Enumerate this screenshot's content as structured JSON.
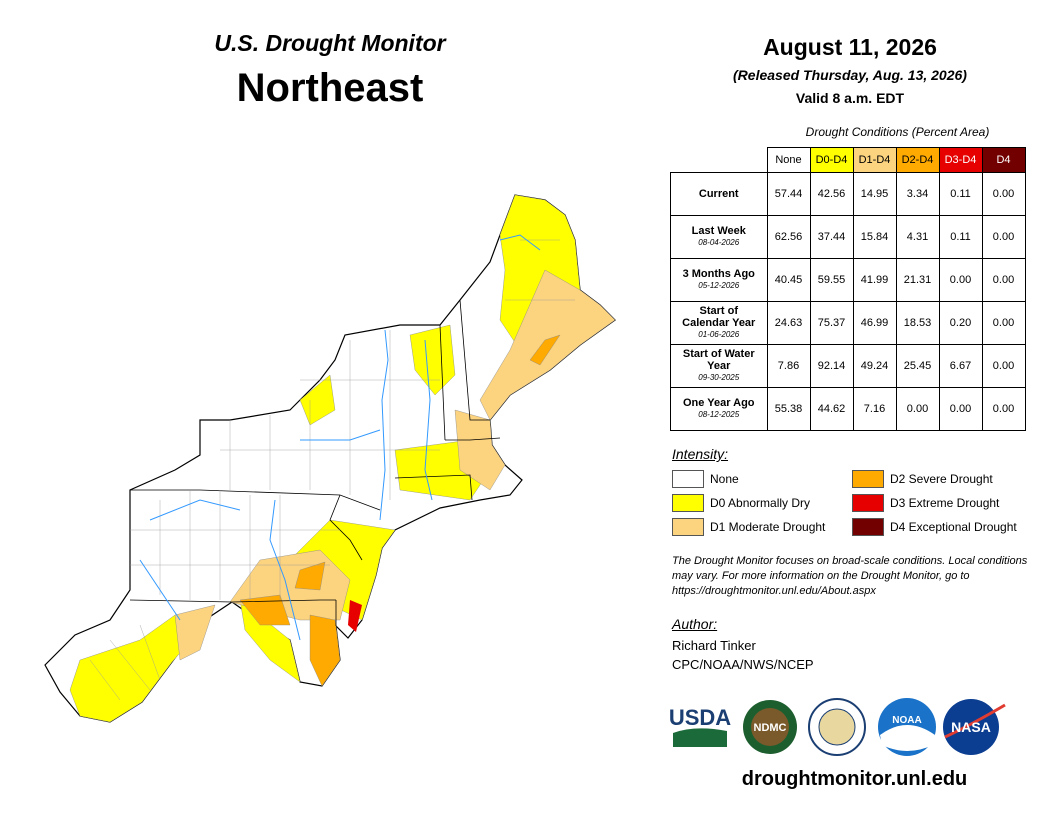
{
  "header": {
    "series": "U.S. Drought Monitor",
    "region": "Northeast"
  },
  "date": {
    "title": "August 11, 2026",
    "released": "(Released Thursday, Aug. 13, 2026)",
    "valid": "Valid 8 a.m. EDT"
  },
  "table": {
    "caption": "Drought Conditions (Percent Area)",
    "columns": [
      {
        "label": "None",
        "color": "#ffffff",
        "text": "#000000"
      },
      {
        "label": "D0-D4",
        "color": "#ffff00",
        "text": "#000000"
      },
      {
        "label": "D1-D4",
        "color": "#fcd37f",
        "text": "#000000"
      },
      {
        "label": "D2-D4",
        "color": "#ffaa00",
        "text": "#000000"
      },
      {
        "label": "D3-D4",
        "color": "#e60000",
        "text": "#ffffff"
      },
      {
        "label": "D4",
        "color": "#730000",
        "text": "#ffffff"
      }
    ],
    "rows": [
      {
        "label": "Current",
        "values": [
          "57.44",
          "42.56",
          "14.95",
          "3.34",
          "0.11",
          "0.00"
        ]
      },
      {
        "label": "Last Week",
        "date": "08-04-2026",
        "values": [
          "62.56",
          "37.44",
          "15.84",
          "4.31",
          "0.11",
          "0.00"
        ]
      },
      {
        "label": "3 Months Ago",
        "date": "05-12-2026",
        "values": [
          "40.45",
          "59.55",
          "41.99",
          "21.31",
          "0.00",
          "0.00"
        ]
      },
      {
        "label": "Start of Calendar Year",
        "date": "01-06-2026",
        "values": [
          "24.63",
          "75.37",
          "46.99",
          "18.53",
          "0.20",
          "0.00"
        ]
      },
      {
        "label": "Start of Water Year",
        "date": "09-30-2025",
        "values": [
          "7.86",
          "92.14",
          "49.24",
          "25.45",
          "6.67",
          "0.00"
        ]
      },
      {
        "label": "One Year Ago",
        "date": "08-12-2025",
        "values": [
          "55.38",
          "44.62",
          "7.16",
          "0.00",
          "0.00",
          "0.00"
        ]
      }
    ]
  },
  "legend": {
    "title": "Intensity:",
    "items": [
      {
        "label": "None",
        "color": "#ffffff"
      },
      {
        "label": "D0 Abnormally Dry",
        "color": "#ffff00"
      },
      {
        "label": "D1 Moderate Drought",
        "color": "#fcd37f"
      },
      {
        "label": "D2 Severe Drought",
        "color": "#ffaa00"
      },
      {
        "label": "D3 Extreme Drought",
        "color": "#e60000"
      },
      {
        "label": "D4 Exceptional Drought",
        "color": "#730000"
      }
    ]
  },
  "note": "The Drought Monitor focuses on broad-scale conditions. Local conditions may vary. For more information on the Drought Monitor, go to https://droughtmonitor.unl.edu/About.aspx",
  "author": {
    "title": "Author:",
    "name": "Richard Tinker",
    "org": "CPC/NOAA/NWS/NCEP"
  },
  "logos": [
    "USDA",
    "NDMC",
    "NOAA",
    "NASA"
  ],
  "url": "droughtmonitor.unl.edu"
}
